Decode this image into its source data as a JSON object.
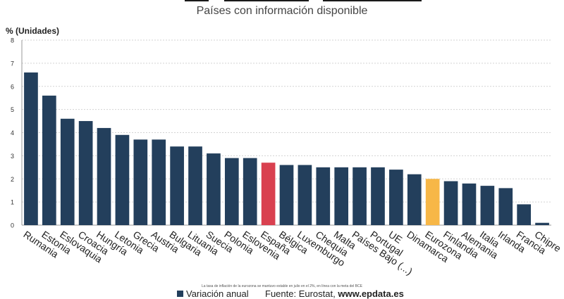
{
  "subtitle": "Países con información disponible",
  "footnote": "La tasa de inflación de la eurozona se mantuvo estable en julio en el 2%, en línea con la meta del BCE",
  "legend_label": "Variación anual",
  "source_prefix": "Fuente: Eurostat",
  "source_site": "www.epdata.es",
  "colors": {
    "bar": "#233f5c",
    "spain": "#d9404f",
    "eurozone": "#f7b747",
    "grid": "#d3d3d3"
  },
  "chart_data": {
    "type": "bar",
    "ylabel": "% (Unidades)",
    "ylim": [
      0,
      8
    ],
    "yticks": [
      0,
      1,
      2,
      3,
      4,
      5,
      6,
      7,
      8
    ],
    "grid": true,
    "categories": [
      "Rumania",
      "Estonia",
      "Eslovaquia",
      "Croacia",
      "Hungría",
      "Letonia",
      "Grecia",
      "Austria",
      "Bulgaria",
      "Lituania",
      "Suecia",
      "Polonia",
      "Eslovenia",
      "España",
      "Bélgica",
      "Luxemburgo",
      "Chequia",
      "Malta",
      "Países Bajo (...)",
      "Portugal",
      "UE",
      "Dinamarca",
      "Eurozona",
      "Finlandia",
      "Alemania",
      "Italia",
      "Irlanda",
      "Francia",
      "Chipre"
    ],
    "series": [
      {
        "name": "Variación anual",
        "values": [
          6.6,
          5.6,
          4.6,
          4.5,
          4.2,
          3.9,
          3.7,
          3.7,
          3.4,
          3.4,
          3.1,
          2.9,
          2.9,
          2.7,
          2.6,
          2.6,
          2.5,
          2.5,
          2.5,
          2.5,
          2.4,
          2.2,
          2.0,
          1.9,
          1.8,
          1.7,
          1.6,
          0.9,
          0.1
        ]
      }
    ],
    "highlight": {
      "España": "spain",
      "Eurozona": "eurozone"
    }
  }
}
